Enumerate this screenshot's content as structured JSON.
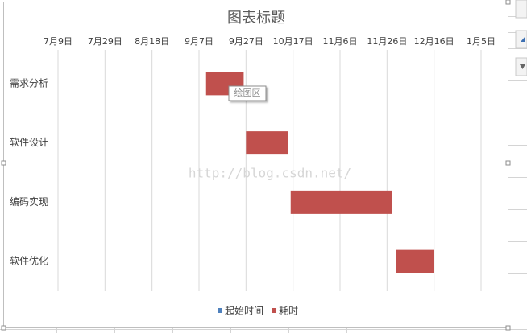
{
  "chart_data": {
    "type": "gantt",
    "title": "图表标题",
    "categories": [
      "需求分析",
      "软件设计",
      "编码实现",
      "软件优化"
    ],
    "series": [
      {
        "name": "起始时间",
        "color": "#4f81bd",
        "bar_fill": "none",
        "values": [
          63,
          80,
          99,
          144
        ]
      },
      {
        "name": "耗时",
        "color": "#c0504d",
        "values": [
          16,
          18,
          43,
          16
        ]
      }
    ],
    "xlim": [
      0,
      180
    ],
    "xticks": [
      {
        "value": 0,
        "label": "7月9日"
      },
      {
        "value": 20,
        "label": "7月29日"
      },
      {
        "value": 40,
        "label": "8月18日"
      },
      {
        "value": 60,
        "label": "9月7日"
      },
      {
        "value": 80,
        "label": "9月27日"
      },
      {
        "value": 100,
        "label": "10月17日"
      },
      {
        "value": 120,
        "label": "11月6日"
      },
      {
        "value": 140,
        "label": "11月26日"
      },
      {
        "value": 160,
        "label": "12月16日"
      },
      {
        "value": 180,
        "label": "1月5日"
      }
    ],
    "grid": true,
    "legend": "bottom",
    "tooltip": "绘图区",
    "watermark": "http://blog.csdn.net/"
  }
}
